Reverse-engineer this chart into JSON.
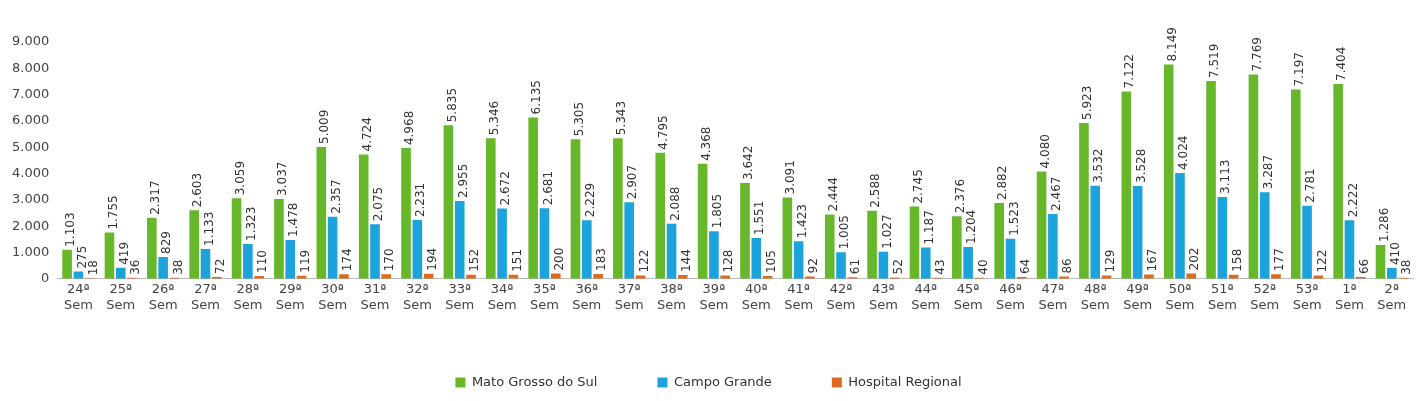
{
  "chart_data": {
    "type": "bar",
    "categories": [
      "24ª Sem",
      "25ª Sem",
      "26ª Sem",
      "27ª Sem",
      "28ª Sem",
      "29ª Sem",
      "30ª Sem",
      "31ª Sem",
      "32ª Sem",
      "33ª Sem",
      "34ª Sem",
      "35ª Sem",
      "36ª Sem",
      "37ª Sem",
      "38ª Sem",
      "39ª Sem",
      "40ª Sem",
      "41ª Sem",
      "42ª Sem",
      "43ª Sem",
      "44ª Sem",
      "45ª Sem",
      "46ª Sem",
      "47ª Sem",
      "48ª Sem",
      "49ª Sem",
      "50ª Sem",
      "51ª Sem",
      "52ª Sem",
      "53ª Sem",
      "1ª Sem",
      "2ª Sem"
    ],
    "series": [
      {
        "name": "Mato Grosso do Sul",
        "color": "#66b82a",
        "values": [
          1103,
          1755,
          2317,
          2603,
          3059,
          3037,
          5009,
          4724,
          4968,
          5835,
          5346,
          6135,
          5305,
          5343,
          4795,
          4368,
          3642,
          3091,
          2444,
          2588,
          2745,
          2376,
          2882,
          4080,
          5923,
          7122,
          8149,
          7519,
          7769,
          7197,
          7404,
          1286
        ],
        "value_labels": [
          "1.103",
          "1.755",
          "2.317",
          "2.603",
          "3.059",
          "3.037",
          "5.009",
          "4.724",
          "4.968",
          "5.835",
          "5.346",
          "6.135",
          "5.305",
          "5.343",
          "4.795",
          "4.368",
          "3.642",
          "3.091",
          "2.444",
          "2.588",
          "2.745",
          "2.376",
          "2.882",
          "4.080",
          "5.923",
          "7.122",
          "8.149",
          "7.519",
          "7.769",
          "7.197",
          "7.404",
          "1.286"
        ]
      },
      {
        "name": "Campo Grande",
        "color": "#1ca3dc",
        "values": [
          275,
          419,
          829,
          1133,
          1323,
          1478,
          2357,
          2075,
          2231,
          2955,
          2672,
          2681,
          2229,
          2907,
          2088,
          1805,
          1551,
          1423,
          1005,
          1027,
          1187,
          1204,
          1523,
          2467,
          3532,
          3528,
          4024,
          3113,
          3287,
          2781,
          2222,
          410
        ],
        "value_labels": [
          "275",
          "419",
          "829",
          "1.133",
          "1.323",
          "1.478",
          "2.357",
          "2.075",
          "2.231",
          "2.955",
          "2.672",
          "2.681",
          "2.229",
          "2.907",
          "2.088",
          "1.805",
          "1.551",
          "1.423",
          "1.005",
          "1.027",
          "1.187",
          "1.204",
          "1.523",
          "2.467",
          "3.532",
          "3.528",
          "4.024",
          "3.113",
          "3.287",
          "2.781",
          "2.222",
          "410"
        ]
      },
      {
        "name": "Hospital Regional",
        "color": "#dd6a1e",
        "values": [
          18,
          36,
          38,
          72,
          110,
          119,
          174,
          170,
          194,
          152,
          151,
          200,
          183,
          122,
          144,
          128,
          105,
          92,
          61,
          52,
          43,
          40,
          64,
          86,
          129,
          167,
          202,
          158,
          177,
          122,
          66,
          38
        ],
        "value_labels": [
          "18",
          "36",
          "38",
          "72",
          "110",
          "119",
          "174",
          "170",
          "194",
          "152",
          "151",
          "200",
          "183",
          "122",
          "144",
          "128",
          "105",
          "92",
          "61",
          "52",
          "43",
          "40",
          "64",
          "86",
          "129",
          "167",
          "202",
          "158",
          "177",
          "122",
          "66",
          "38"
        ]
      }
    ],
    "ylim": [
      0,
      9000
    ],
    "yticks": [
      {
        "value": 0,
        "label": "0"
      },
      {
        "value": 1000,
        "label": "1.000"
      },
      {
        "value": 2000,
        "label": "2.000"
      },
      {
        "value": 3000,
        "label": "3.000"
      },
      {
        "value": 4000,
        "label": "4.000"
      },
      {
        "value": 5000,
        "label": "5.000"
      },
      {
        "value": 6000,
        "label": "6.000"
      },
      {
        "value": 7000,
        "label": "7.000"
      },
      {
        "value": 8000,
        "label": "8.000"
      },
      {
        "value": 9000,
        "label": "9.000"
      }
    ],
    "grid": false,
    "legend": "bottom"
  }
}
